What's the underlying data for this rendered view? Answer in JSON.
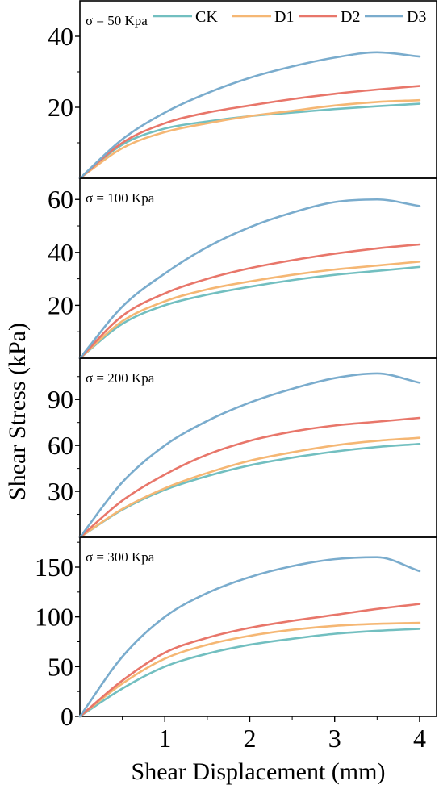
{
  "chart_data": {
    "type": "line",
    "xlabel": "Shear Displacement (mm)",
    "ylabel": "Shear Stress (kPa)",
    "xlim": [
      0,
      4.2
    ],
    "xticks": [
      1,
      2,
      3,
      4
    ],
    "grid": false,
    "legend_placement": "top",
    "legend": [
      {
        "name": "CK",
        "color": "#72bfc0"
      },
      {
        "name": "D1",
        "color": "#f5b774"
      },
      {
        "name": "D2",
        "color": "#e8766a"
      },
      {
        "name": "D3",
        "color": "#7aaccd"
      }
    ],
    "x": [
      0,
      0.5,
      1,
      1.5,
      2,
      2.5,
      3,
      3.5,
      4
    ],
    "panels": [
      {
        "label": "σ = 50 Kpa",
        "ylim": [
          0,
          50
        ],
        "yticks": [
          20,
          40
        ],
        "series": [
          {
            "name": "CK",
            "values": [
              0,
              9.5,
              14,
              16,
              17.5,
              18.5,
              19.5,
              20.3,
              21
            ]
          },
          {
            "name": "D1",
            "values": [
              0,
              8.5,
              13,
              15.5,
              17.5,
              19,
              20.5,
              21.5,
              22
            ]
          },
          {
            "name": "D2",
            "values": [
              0,
              10,
              15.5,
              18.5,
              20.5,
              22.3,
              23.8,
              25,
              26
            ]
          },
          {
            "name": "D3",
            "values": [
              0,
              11,
              18.5,
              24,
              28.3,
              31.5,
              34,
              35.5,
              34.3
            ]
          }
        ]
      },
      {
        "label": "σ = 100 Kpa",
        "ylim": [
          0,
          68
        ],
        "yticks": [
          20,
          40,
          60
        ],
        "series": [
          {
            "name": "CK",
            "values": [
              0,
              13,
              20,
              24,
              27,
              29.5,
              31.5,
              33,
              34.5
            ]
          },
          {
            "name": "D1",
            "values": [
              0,
              14,
              21.5,
              26,
              29,
              31.5,
              33.5,
              35,
              36.5
            ]
          },
          {
            "name": "D2",
            "values": [
              0,
              16,
              24.5,
              30,
              34,
              37,
              39.5,
              41.5,
              43
            ]
          },
          {
            "name": "D3",
            "values": [
              0,
              19.5,
              32,
              42,
              49.5,
              55,
              59,
              60,
              57.5
            ]
          }
        ]
      },
      {
        "label": "σ = 200 Kpa",
        "ylim": [
          0,
          117
        ],
        "yticks": [
          30,
          60,
          90
        ],
        "series": [
          {
            "name": "CK",
            "values": [
              0,
              18,
              31,
              40,
              47,
              52,
              56,
              59,
              61
            ]
          },
          {
            "name": "D1",
            "values": [
              0,
              18.5,
              32,
              42,
              50,
              55.5,
              60,
              63,
              65
            ]
          },
          {
            "name": "D2",
            "values": [
              0,
              24,
              41,
              54,
              63,
              69,
              73,
              75.5,
              78
            ]
          },
          {
            "name": "D3",
            "values": [
              0,
              36,
              60,
              76,
              88,
              97,
              104,
              107,
              101
            ]
          }
        ]
      },
      {
        "label": "σ = 300 Kpa",
        "ylim": [
          0,
          180
        ],
        "yticks": [
          0,
          50,
          100,
          150
        ],
        "series": [
          {
            "name": "CK",
            "values": [
              0,
              28,
              50,
              63,
              72,
              78,
              83,
              86,
              88
            ]
          },
          {
            "name": "D1",
            "values": [
              0,
              33,
              58,
              72,
              81,
              87,
              91,
              93,
              94
            ]
          },
          {
            "name": "D2",
            "values": [
              0,
              36,
              64,
              79,
              89,
              96,
              102,
              108,
              113
            ]
          },
          {
            "name": "D3",
            "values": [
              0,
              60,
              100,
              124,
              140,
              151,
              158,
              160,
              146
            ]
          }
        ]
      }
    ]
  }
}
